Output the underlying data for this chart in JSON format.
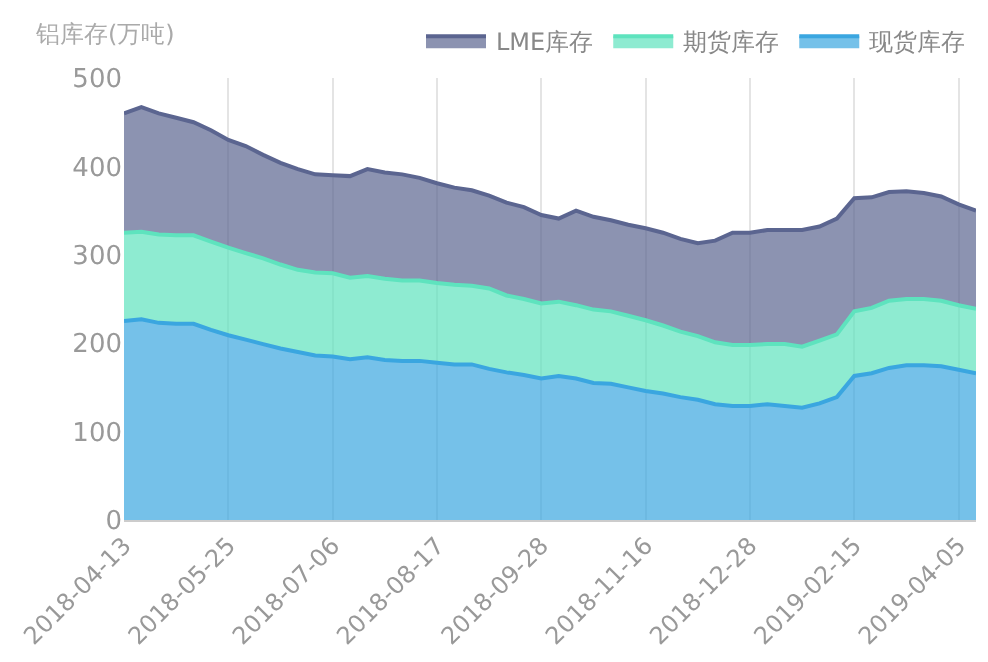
{
  "chart_data": {
    "type": "area",
    "stacked": true,
    "ylabel": "铝库存(万吨)",
    "categories": [
      "2018-04-13",
      null,
      null,
      null,
      null,
      null,
      "2018-05-25",
      null,
      null,
      null,
      null,
      null,
      "2018-07-06",
      null,
      null,
      null,
      null,
      null,
      "2018-08-17",
      null,
      null,
      null,
      null,
      null,
      "2018-09-28",
      null,
      null,
      null,
      null,
      null,
      "2018-11-16",
      null,
      null,
      null,
      null,
      null,
      "2018-12-28",
      null,
      null,
      null,
      null,
      null,
      "2019-02-15",
      null,
      null,
      null,
      null,
      null,
      "2019-04-05",
      null
    ],
    "series": [
      {
        "name": "现货库存",
        "color": "#3aa6e0",
        "values": [
          225,
          227,
          223,
          222,
          222,
          215,
          209,
          204,
          199,
          194,
          190,
          186,
          185,
          182,
          184,
          181,
          180,
          180,
          178,
          176,
          176,
          171,
          167,
          164,
          160,
          163,
          160,
          155,
          154,
          150,
          146,
          143,
          139,
          136,
          131,
          129,
          129,
          131,
          129,
          127,
          132,
          139,
          163,
          166,
          172,
          175,
          175,
          174,
          170,
          166
        ]
      },
      {
        "name": "期货库存",
        "color": "#5ee3be",
        "values": [
          100,
          99,
          100,
          100,
          100,
          100,
          99,
          98,
          97,
          95,
          93,
          94,
          94,
          92,
          92,
          92,
          91,
          91,
          90,
          90,
          89,
          91,
          87,
          86,
          85,
          84,
          83,
          83,
          82,
          81,
          80,
          77,
          74,
          72,
          70,
          69,
          69,
          68,
          70,
          69,
          71,
          71,
          73,
          74,
          76,
          75,
          75,
          74,
          73,
          73
        ]
      },
      {
        "name": "LME库存",
        "color": "#5b6590",
        "values": [
          135,
          141,
          137,
          133,
          128,
          126,
          122,
          121,
          117,
          115,
          114,
          111,
          111,
          115,
          121,
          120,
          120,
          116,
          113,
          110,
          108,
          105,
          105,
          104,
          100,
          94,
          107,
          105,
          103,
          103,
          104,
          105,
          105,
          105,
          115,
          127,
          127,
          129,
          129,
          132,
          129,
          131,
          128,
          125,
          123,
          122,
          120,
          118,
          114,
          111
        ]
      }
    ],
    "ylim": [
      0,
      500
    ],
    "yticks": [
      0,
      100,
      200,
      300,
      400,
      500
    ],
    "grid": "x",
    "legend": "top right",
    "marker": "none",
    "line_style": "solid"
  }
}
